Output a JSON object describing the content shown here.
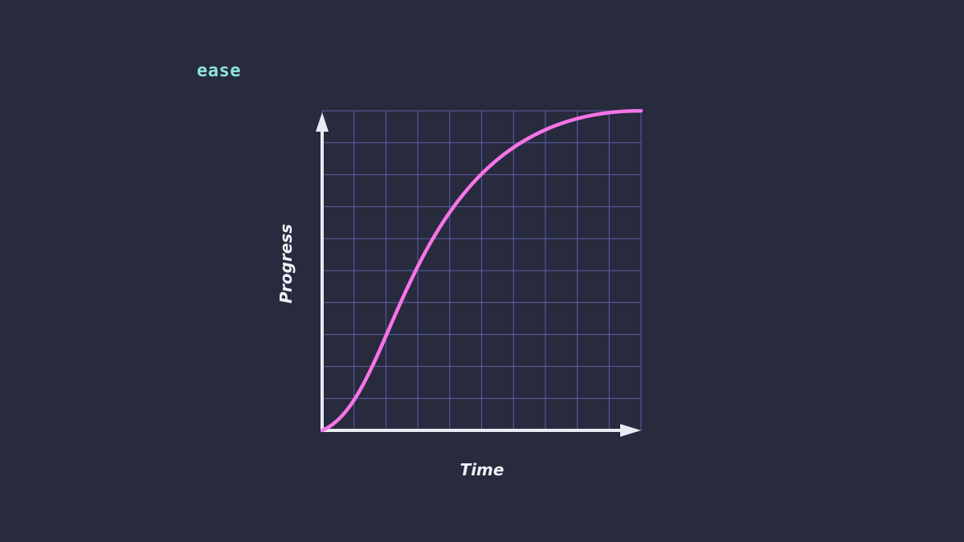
{
  "title": "ease",
  "colors": {
    "background": "#282a3d",
    "grid": "#5c62a8",
    "axis": "#e8eaf4",
    "curve": "#f774e8",
    "title": "#8de6de"
  },
  "chart_data": {
    "type": "line",
    "title": "ease",
    "xlabel": "Time",
    "ylabel": "Progress",
    "xlim": [
      0,
      1
    ],
    "ylim": [
      0,
      1
    ],
    "grid": true,
    "grid_divisions": 10,
    "curve": "cubic-bezier",
    "control_points": [
      [
        0,
        0
      ],
      [
        0.25,
        0.1
      ],
      [
        0.25,
        1
      ],
      [
        1,
        1
      ]
    ]
  }
}
